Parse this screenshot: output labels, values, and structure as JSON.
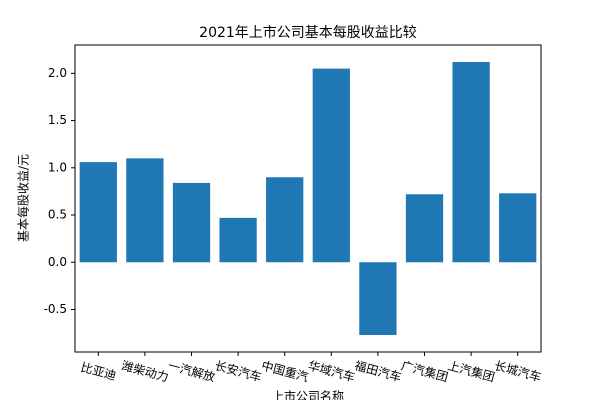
{
  "chart_data": {
    "type": "bar",
    "title": "2021年上市公司基本每股收益比较",
    "xlabel": "上市公司名称",
    "ylabel": "基本每股收益/元",
    "categories": [
      "比亚迪",
      "潍柴动力",
      "一汽解放",
      "长安汽车",
      "中国重汽",
      "华域汽车",
      "福田汽车",
      "广汽集团",
      "上汽集团",
      "长城汽车"
    ],
    "values": [
      1.06,
      1.1,
      0.84,
      0.47,
      0.9,
      2.05,
      -0.77,
      0.72,
      2.12,
      0.73
    ],
    "color": "#1f77b4",
    "ylim": [
      -0.95,
      2.3
    ],
    "yticks": [
      -0.5,
      {
        "value": 0,
        "label": "0.0"
      },
      0.5,
      {
        "value": 1,
        "label": "1.0"
      },
      1.5,
      {
        "value": 2,
        "label": "2.0"
      }
    ],
    "grid": false
  }
}
